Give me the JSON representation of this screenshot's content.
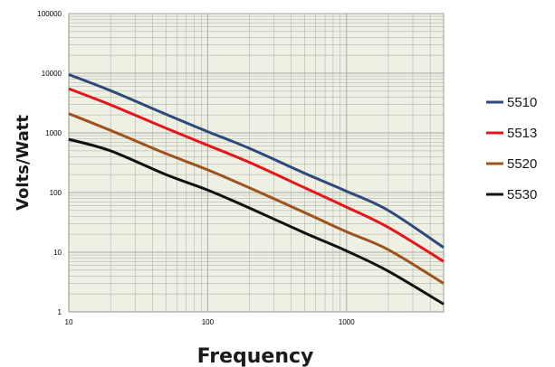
{
  "chart_data": {
    "type": "line",
    "xlabel": "Frequency",
    "ylabel": "Volts/Watt",
    "x_scale": "log",
    "y_scale": "log",
    "xlim": [
      10,
      5000
    ],
    "ylim": [
      1,
      100000
    ],
    "x_ticks": [
      "10",
      "100",
      "1000"
    ],
    "y_ticks": [
      "1",
      "10",
      "100",
      "1000",
      "10000",
      "100000"
    ],
    "grid": true,
    "legend_position": "right",
    "plot_background": "#edf0e3",
    "grid_color": "#a9aca3",
    "series": [
      {
        "name": "5510",
        "color": "#2e4a7d",
        "x": [
          10,
          20,
          50,
          100,
          200,
          500,
          1000,
          2000,
          5000
        ],
        "y": [
          9500,
          5100,
          2050,
          1050,
          550,
          210,
          105,
          50,
          12
        ]
      },
      {
        "name": "5513",
        "color": "#e8141c",
        "x": [
          10,
          20,
          50,
          100,
          200,
          500,
          1000,
          2000,
          5000
        ],
        "y": [
          5500,
          2950,
          1200,
          620,
          320,
          120,
          57,
          26,
          7
        ]
      },
      {
        "name": "5520",
        "color": "#a0521e",
        "x": [
          10,
          20,
          50,
          100,
          200,
          500,
          1000,
          2000,
          5000
        ],
        "y": [
          2100,
          1100,
          450,
          240,
          120,
          46,
          22,
          11,
          3
        ]
      },
      {
        "name": "5530",
        "color": "#111111",
        "x": [
          10,
          20,
          50,
          100,
          200,
          500,
          1000,
          2000,
          5000
        ],
        "y": [
          780,
          500,
          200,
          110,
          55,
          21,
          10.5,
          4.8,
          1.35
        ]
      }
    ]
  }
}
